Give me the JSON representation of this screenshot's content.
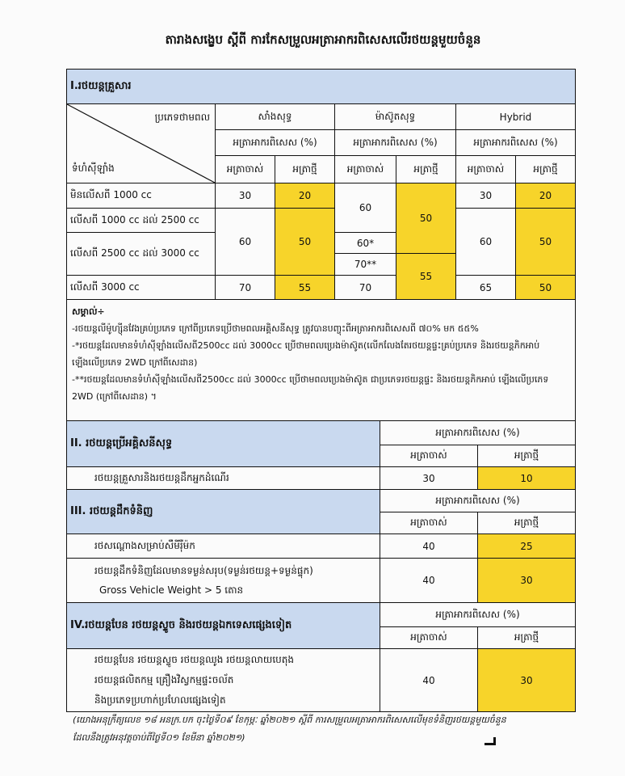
{
  "title": "តារាងសង្ខេប ស្តីពី ការកែសម្រួលអត្រាអាករពិសេសលើរថយន្តមួយចំនួន",
  "s1": {
    "heading": "I.រថយន្តគ្រួសារ",
    "energy_label": "ប្រភេទថាមពល",
    "cyl_label": "ទំហំស៊ីឡាំង",
    "fuels": [
      "សាំងសុទ្ធ",
      "ម៉ាស៊ូតសុទ្ធ",
      "Hybrid"
    ],
    "rate_label": "អត្រាអាករពិសេស (%)",
    "old": "អត្រាចាស់",
    "new": "អត្រាថ្មី",
    "rows": [
      "មិនលើសពី 1000 cc",
      "លើសពី 1000 cc ដល់ 2500 cc",
      "លើសពី 2500 cc ដល់ 3000 cc",
      "លើសពី 3000 cc"
    ],
    "petrol": {
      "r1_old": "30",
      "r1_new": "20",
      "r23_old": "60",
      "r23_new": "50",
      "r4_old": "70",
      "r4_new": "55"
    },
    "diesel": {
      "r12_old": "60",
      "r3a_old": "60*",
      "r3b_old": "70**",
      "r4_old": "70",
      "new_a": "50",
      "new_b": "55"
    },
    "hybrid": {
      "r1_old": "30",
      "r1_new": "20",
      "r23_old": "60",
      "r23_new": "50",
      "r4_old": "65",
      "r4_new": "50"
    },
    "notes": [
      "សម្គាល់÷",
      "-រថយន្តលីម៉ូហ្ស៊ីនវែងគ្រប់ប្រភេទ ក្រៅពីប្រភេទប្រើថាមពលអគ្គិសនីសុទ្ធ ត្រូវបានបញ្ចុះពីអត្រាអាករពិសេសពី ៧០% មក ៥៥%",
      "-*រថយន្តដែលមានទំហំស៊ីឡាំងលើសពី2500cc ដល់ 3000cc ប្រើថាមពលប្រេងម៉ាស៊ូត(លើកលែងតែរថយន្តផ្ទះគ្រប់ប្រភេទ និងរថយន្តភិកអាប់ ឡើងលើប្រភេទ 2WD ក្រៅពីសេដាន)",
      "-**រថយន្តដែលមានទំហំស៊ីឡាំងលើសពី2500cc ដល់ 3000cc ប្រើថាមពលប្រេងម៉ាស៊ូត ជាប្រភេទរថយន្តផ្ទះ និងរថយន្តភិកអាប់ ឡើងលើប្រភេទ 2WD (ក្រៅពីសេដាន) ។"
    ]
  },
  "s2": {
    "heading": "II. រថយន្តប្រើអគ្គិសនីសុទ្ធ",
    "rows": [
      {
        "label": "រថយន្តគ្រួសារនិងរថយន្តដឹកអ្នកដំណើរ",
        "old": "30",
        "new": "10"
      }
    ]
  },
  "s3": {
    "heading": "III. រថយន្តដឹកទំនិញ",
    "rows": [
      {
        "label": "រថសណ្តោងសម្រាប់សឺមីរ៉ឺម៉ក",
        "old": "40",
        "new": "25"
      },
      {
        "label": "រថយន្តដឹកទំនិញដែលមានទម្ងន់សរុប(ទម្ងន់រថយន្ត+ទម្ងន់ផ្ទុក)",
        "label2": "Gross Vehicle Weight > 5 តោន",
        "old": "40",
        "new": "30"
      }
    ]
  },
  "s4": {
    "heading": "IV.រថយន្តបែន រថយន្តស្ទូច និងរថយន្តឯកទេសផ្សេងទៀត",
    "lines": [
      "រថយន្តបែន រថយន្តស្ទូច រថយន្តឈូង រថយន្តលាយបេតុង",
      "រថយន្តផលិតកម្ម គ្រឿងវិស្វកម្មផ្ទះចល័ត",
      "និងប្រភេទប្រហាក់ប្រហែលផ្សេងទៀត"
    ],
    "old": "40",
    "new": "30"
  },
  "footer": [
    "(យោងអនុក្រឹត្យលេខ ១៨ អនក្រ.បក ចុះថ្ងៃទី០៩ ខែកុម្ភៈ ឆ្នាំ២០២១ ស្តីពី ការសម្រួលអត្រាអាករពិសេសលើមុខទំនិញរថយន្តមួយចំនួន",
    "ដែលនឹងត្រូវអនុវត្តចាប់ពីថ្ងៃទី០១ ខែមីនា ឆ្នាំ២០២១)"
  ],
  "colors": {
    "highlight": "#f7d42a",
    "section": "#c9d9ef"
  }
}
